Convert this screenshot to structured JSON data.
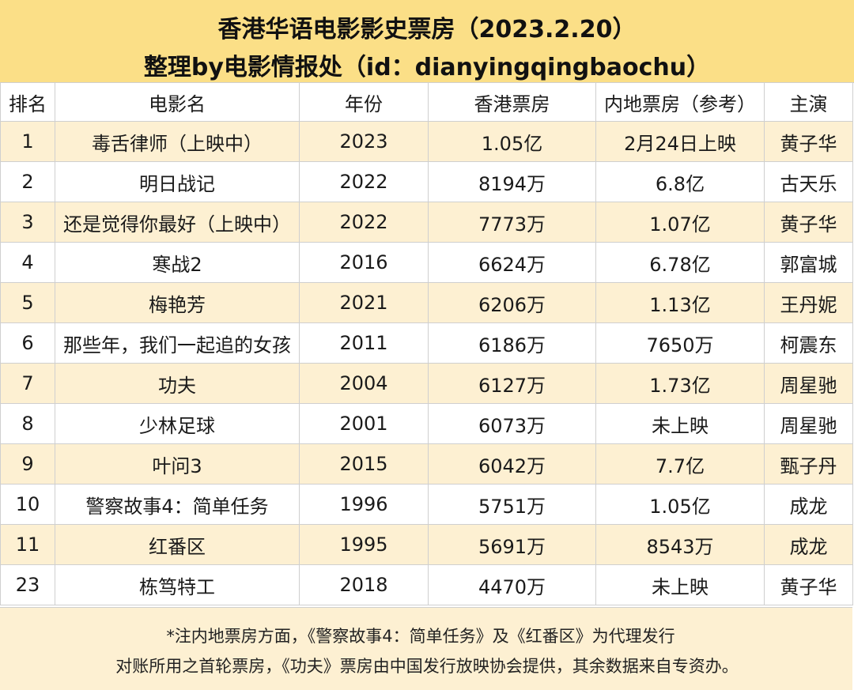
{
  "title": {
    "line1": "香港华语电影影史票房（2023.2.20）",
    "line2": "整理by电影情报处（id：dianyingqingbaochu）"
  },
  "headers": [
    "排名",
    "电影名",
    "年份",
    "香港票房",
    "内地票房（参考）",
    "主演"
  ],
  "rows": [
    [
      "1",
      "毒舌律师（上映中）",
      "2023",
      "1.05亿",
      "2月24日上映",
      "黄子华"
    ],
    [
      "2",
      "明日战记",
      "2022",
      "8194万",
      "6.8亿",
      "古天乐"
    ],
    [
      "3",
      "还是觉得你最好（上映中）",
      "2022",
      "7773万",
      "1.07亿",
      "黄子华"
    ],
    [
      "4",
      "寒战2",
      "2016",
      "6624万",
      "6.78亿",
      "郭富城"
    ],
    [
      "5",
      "梅艳芳",
      "2021",
      "6206万",
      "1.13亿",
      "王丹妮"
    ],
    [
      "6",
      "那些年，我们一起追的女孩",
      "2011",
      "6186万",
      "7650万",
      "柯震东"
    ],
    [
      "7",
      "功夫",
      "2004",
      "6127万",
      "1.73亿",
      "周星驰"
    ],
    [
      "8",
      "少林足球",
      "2001",
      "6073万",
      "未上映",
      "周星驰"
    ],
    [
      "9",
      "叶问3",
      "2015",
      "6042万",
      "7.7亿",
      "甄子丹"
    ],
    [
      "10",
      "警察故事4：简单任务",
      "1996",
      "5751万",
      "1.05亿",
      "成龙"
    ],
    [
      "11",
      "红番区",
      "1995",
      "5691万",
      "8543万",
      "成龙"
    ],
    [
      "23",
      "栋笃特工",
      "2018",
      "4470万",
      "未上映",
      "黄子华"
    ]
  ],
  "footnote": {
    "line1": "*注内地票房方面，《警察故事4：简单任务》及《红番区》为代理发行",
    "line2": "对账所用之首轮票房，《功夫》票房由中国发行放映协会提供，其余数据来自专资办。"
  },
  "colors": {
    "title_bg": "#fbdf87",
    "stripe_bg": "#fdf0d2",
    "border": "#cfcfcf"
  }
}
